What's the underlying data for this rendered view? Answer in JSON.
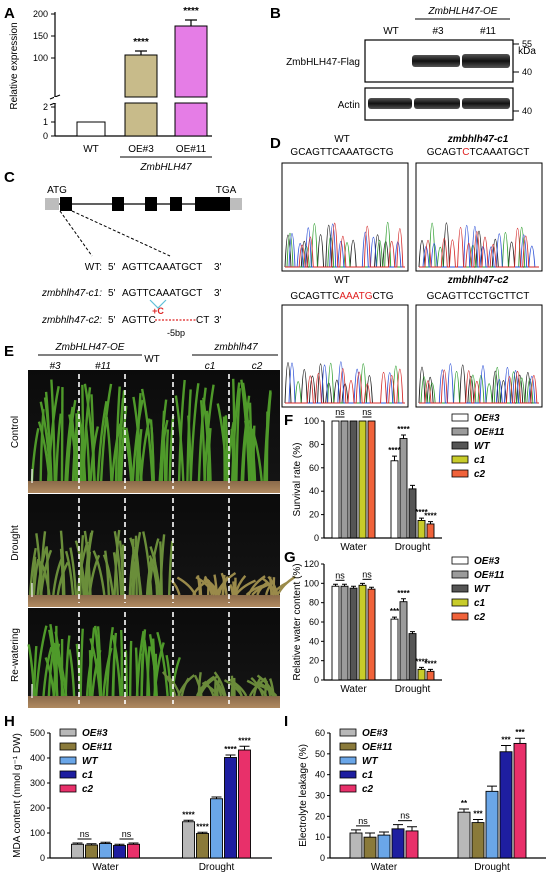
{
  "panels": {
    "A": {
      "letter": "A",
      "ylabel": "Relative expression",
      "y_ticks_top": [
        "200",
        "150",
        "100"
      ],
      "y_ticks_mid": [
        "2"
      ],
      "y_ticks_bot": [
        "1",
        "0"
      ],
      "categories": [
        "WT",
        "OE#3",
        "OE#11"
      ],
      "group_label": "ZmbHLH47",
      "stars": [
        "",
        "****",
        "****"
      ],
      "colors": [
        "#ffffff",
        "#c8bb8a",
        "#e57de6"
      ]
    },
    "B": {
      "letter": "B",
      "header": "ZmbHLH47-OE",
      "lanes": [
        "WT",
        "#3",
        "#11"
      ],
      "kda": "kDa",
      "rows": [
        "ZmbHLH47-Flag",
        "Actin"
      ],
      "markers": [
        "55",
        "40",
        "40"
      ]
    },
    "C": {
      "letter": "C",
      "atg": "ATG",
      "tga": "TGA",
      "rows": [
        {
          "name": "WT:",
          "p5": "5'",
          "seq": "AGTTCAAATGCT",
          "p3": "3'"
        },
        {
          "name": "zmbhlh47-c1:",
          "p5": "5'",
          "seq": "AGTTCAAATGCT",
          "p3": "3'"
        },
        {
          "name": "zmbhlh47-c2:",
          "p5": "5'",
          "seq": "AGTTC",
          "seq_end": "CT",
          "p3": "3'"
        }
      ],
      "ins": "+C",
      "del": "-5bp"
    },
    "D": {
      "letter": "D",
      "titles": [
        "WT",
        "zmbhlh47-c1",
        "WT",
        "zmbhlh47-c2"
      ],
      "seqs": [
        {
          "a": "GCAGTTCAAATGCTG",
          "r": "",
          "b": ""
        },
        {
          "a": "GCAGT",
          "r": "C",
          "b": "TCAAATGCT"
        },
        {
          "a": "GCAGTTC",
          "r": "AAATG",
          "b": "CTG"
        },
        {
          "a": "GCAGTTCCTGCTTCT",
          "r": "",
          "b": ""
        }
      ]
    },
    "E": {
      "letter": "E",
      "group_oe": "ZmbHLH47-OE",
      "group_mut": "zmbhlh47",
      "lines": [
        "#3",
        "#11",
        "WT",
        "c1",
        "c2"
      ],
      "rows": [
        "Control",
        "Drought",
        "Re-watering"
      ]
    },
    "F": {
      "letter": "F"
    },
    "G": {
      "letter": "G"
    },
    "H": {
      "letter": "H"
    },
    "I": {
      "letter": "I"
    }
  },
  "chart_data": [
    {
      "panel": "A",
      "type": "bar",
      "ylabel": "Relative expression",
      "group_label": "ZmbHLH47",
      "categories": [
        "WT",
        "OE#3",
        "OE#11"
      ],
      "values": [
        1,
        112,
        176
      ],
      "errors": [
        0.05,
        8,
        14
      ],
      "significance": [
        "",
        "****",
        "****"
      ],
      "y_axis_breaks": [
        [
          2,
          100
        ]
      ],
      "yticks": [
        0,
        1,
        2,
        100,
        150,
        200
      ]
    },
    {
      "panel": "F",
      "type": "bar",
      "ylabel": "Survival rate (%)",
      "groups": [
        "Water",
        "Drought"
      ],
      "ylim": [
        0,
        100
      ],
      "yticks": [
        "0",
        "20",
        "40",
        "60",
        "80",
        "100"
      ],
      "legend": "top-right",
      "series": [
        {
          "name": "OE#3",
          "color": "#ffffff",
          "values": [
            100,
            66
          ],
          "errors": [
            0,
            4
          ]
        },
        {
          "name": "OE#11",
          "color": "#9b9b9b",
          "values": [
            100,
            85
          ],
          "errors": [
            0,
            3
          ]
        },
        {
          "name": "WT",
          "color": "#555555",
          "values": [
            100,
            42
          ],
          "errors": [
            0,
            3
          ]
        },
        {
          "name": "c1",
          "color": "#c8cc2a",
          "values": [
            100,
            15
          ],
          "errors": [
            0,
            2
          ]
        },
        {
          "name": "c2",
          "color": "#f0623a",
          "values": [
            100,
            12
          ],
          "errors": [
            0,
            2
          ]
        }
      ],
      "significance": {
        "Water": [
          "ns",
          "ns"
        ],
        "Drought": [
          "****",
          "****",
          "",
          "****",
          "****"
        ]
      }
    },
    {
      "panel": "G",
      "type": "bar",
      "ylabel": "Relative water content (%)",
      "groups": [
        "Water",
        "Drought"
      ],
      "ylim": [
        0,
        120
      ],
      "yticks": [
        "0",
        "20",
        "40",
        "60",
        "80",
        "100",
        "120"
      ],
      "legend": "top-right",
      "series": [
        {
          "name": "OE#3",
          "color": "#ffffff",
          "values": [
            97,
            63
          ],
          "errors": [
            2,
            2
          ]
        },
        {
          "name": "OE#11",
          "color": "#9b9b9b",
          "values": [
            97,
            81
          ],
          "errors": [
            2,
            3
          ]
        },
        {
          "name": "WT",
          "color": "#555555",
          "values": [
            95,
            48
          ],
          "errors": [
            2,
            2
          ]
        },
        {
          "name": "c1",
          "color": "#c8cc2a",
          "values": [
            98,
            11
          ],
          "errors": [
            2,
            2
          ]
        },
        {
          "name": "c2",
          "color": "#f0623a",
          "values": [
            94,
            9
          ],
          "errors": [
            2,
            2
          ]
        }
      ],
      "significance": {
        "Water": [
          "ns",
          "ns"
        ],
        "Drought": [
          "***",
          "****",
          "",
          "****",
          "****"
        ]
      }
    },
    {
      "panel": "H",
      "type": "bar",
      "ylabel": "MDA content (nmol g⁻¹ DW)",
      "groups": [
        "Water",
        "Drought"
      ],
      "ylim": [
        0,
        500
      ],
      "yticks": [
        "0",
        "100",
        "200",
        "300",
        "400",
        "500"
      ],
      "legend": "top-left",
      "series": [
        {
          "name": "OE#3",
          "color": "#b8b8b8",
          "values": [
            55,
            145
          ],
          "errors": [
            5,
            6
          ]
        },
        {
          "name": "OE#11",
          "color": "#8a7a3a",
          "values": [
            52,
            98
          ],
          "errors": [
            5,
            5
          ]
        },
        {
          "name": "WT",
          "color": "#6aa6e8",
          "values": [
            58,
            237
          ],
          "errors": [
            5,
            7
          ]
        },
        {
          "name": "c1",
          "color": "#1e1ea0",
          "values": [
            50,
            402
          ],
          "errors": [
            5,
            10
          ]
        },
        {
          "name": "c2",
          "color": "#e8306a",
          "values": [
            55,
            432
          ],
          "errors": [
            5,
            15
          ]
        }
      ],
      "significance": {
        "Water": [
          "ns",
          "ns"
        ],
        "Drought": [
          "****",
          "****",
          "",
          "****",
          "****"
        ]
      }
    },
    {
      "panel": "I",
      "type": "bar",
      "ylabel": "Electrolyte leakage (%)",
      "groups": [
        "Water",
        "Drought"
      ],
      "ylim": [
        0,
        60
      ],
      "yticks": [
        "0",
        "10",
        "20",
        "30",
        "40",
        "50",
        "60"
      ],
      "legend": "top-left",
      "series": [
        {
          "name": "OE#3",
          "color": "#b8b8b8",
          "values": [
            12,
            22
          ],
          "errors": [
            1.5,
            1.5
          ]
        },
        {
          "name": "OE#11",
          "color": "#8a7a3a",
          "values": [
            10,
            17
          ],
          "errors": [
            2,
            1.5
          ]
        },
        {
          "name": "WT",
          "color": "#6aa6e8",
          "values": [
            11,
            32
          ],
          "errors": [
            1.5,
            2.5
          ]
        },
        {
          "name": "c1",
          "color": "#1e1ea0",
          "values": [
            14,
            51
          ],
          "errors": [
            2,
            3
          ]
        },
        {
          "name": "c2",
          "color": "#e8306a",
          "values": [
            13,
            55
          ],
          "errors": [
            2,
            2.5
          ]
        }
      ],
      "significance": {
        "Water": [
          "ns",
          "ns"
        ],
        "Drought": [
          "**",
          "***",
          "",
          "***",
          "***"
        ]
      }
    }
  ]
}
